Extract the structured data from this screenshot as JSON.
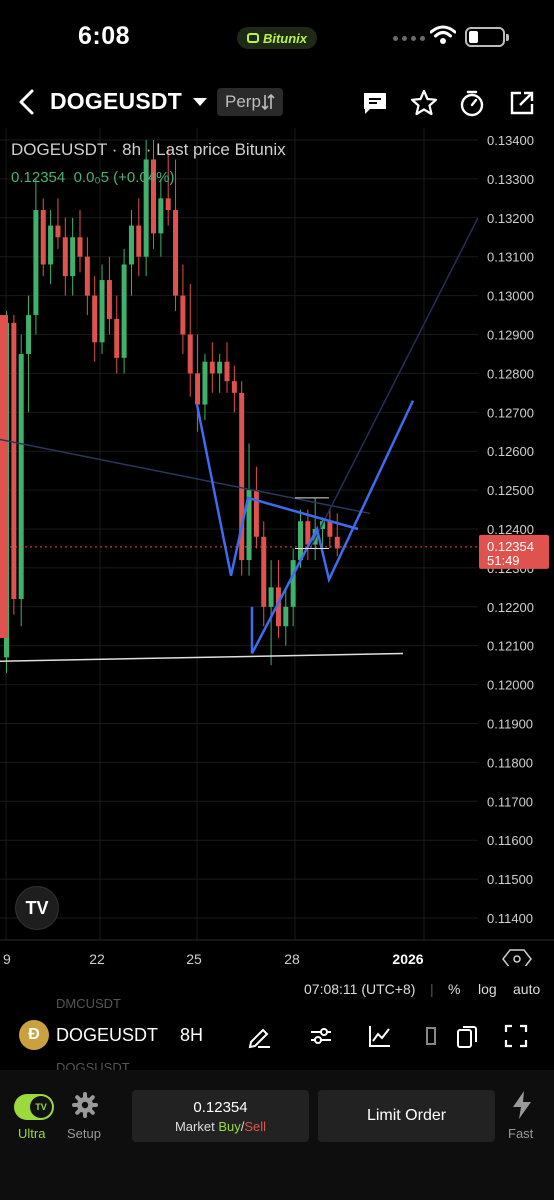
{
  "status": {
    "time": "6:08",
    "brand": "Bitunix"
  },
  "header": {
    "pair": "DOGEUSDT",
    "type_badge": "Perp",
    "type_badge_icon": "swap-arrows-icon"
  },
  "chart": {
    "legend_title": "DOGEUSDT · 8h · Last price Bitunix",
    "legend_price": "0.12354",
    "legend_change": "0.0₀5 (+0.04%)",
    "price_scale": [
      "0.13400",
      "0.13300",
      "0.13200",
      "0.13100",
      "0.13000",
      "0.12900",
      "0.12800",
      "0.12700",
      "0.12600",
      "0.12500",
      "0.12400",
      "0.12300",
      "0.12200",
      "0.12100",
      "0.12000",
      "0.11900",
      "0.11800",
      "0.11700",
      "0.11600",
      "0.11500",
      "0.11400"
    ],
    "time_scale": [
      "9",
      "22",
      "25",
      "28",
      "2026"
    ],
    "last_price_badge": "0.12354",
    "countdown": "51:49",
    "colors": {
      "up": "#3fb16b",
      "down": "#e0524d",
      "drawing": "#3d6cf0",
      "grid": "#1a1a1a"
    }
  },
  "chart_data": {
    "type": "candlestick",
    "title": "DOGEUSDT · 8h · Last price Bitunix",
    "xlabel": "",
    "ylabel": "",
    "ylim": [
      0.114,
      0.134
    ],
    "x_ticks": [
      "9",
      "22",
      "25",
      "28",
      "2026"
    ],
    "last_price": 0.12354,
    "note_series": "OHLC approximated per visible candle",
    "ohlc": [
      [
        0.1207,
        0.1296,
        0.1203,
        0.1293
      ],
      [
        0.1293,
        0.1295,
        0.1218,
        0.1222
      ],
      [
        0.1222,
        0.129,
        0.1215,
        0.1285
      ],
      [
        0.1285,
        0.13,
        0.127,
        0.1295
      ],
      [
        0.1295,
        0.133,
        0.129,
        0.1322
      ],
      [
        0.1322,
        0.1325,
        0.1305,
        0.1308
      ],
      [
        0.1308,
        0.1322,
        0.1303,
        0.1318
      ],
      [
        0.1318,
        0.1325,
        0.1312,
        0.1315
      ],
      [
        0.1315,
        0.132,
        0.13,
        0.1305
      ],
      [
        0.1305,
        0.132,
        0.13,
        0.1315
      ],
      [
        0.1315,
        0.1322,
        0.1306,
        0.131
      ],
      [
        0.131,
        0.1315,
        0.1295,
        0.13
      ],
      [
        0.13,
        0.1305,
        0.1283,
        0.1288
      ],
      [
        0.1288,
        0.1308,
        0.1285,
        0.1304
      ],
      [
        0.1304,
        0.131,
        0.129,
        0.1294
      ],
      [
        0.1294,
        0.13,
        0.128,
        0.1284
      ],
      [
        0.1284,
        0.1312,
        0.128,
        0.1308
      ],
      [
        0.1308,
        0.1322,
        0.13,
        0.1318
      ],
      [
        0.1318,
        0.1325,
        0.1305,
        0.131
      ],
      [
        0.131,
        0.134,
        0.1305,
        0.1335
      ],
      [
        0.1335,
        0.134,
        0.1312,
        0.1316
      ],
      [
        0.1316,
        0.133,
        0.131,
        0.1325
      ],
      [
        0.1325,
        0.1338,
        0.1318,
        0.1322
      ],
      [
        0.1322,
        0.1335,
        0.1296,
        0.13
      ],
      [
        0.13,
        0.1308,
        0.1285,
        0.129
      ],
      [
        0.129,
        0.1303,
        0.1274,
        0.128
      ],
      [
        0.128,
        0.129,
        0.1265,
        0.1272
      ],
      [
        0.1272,
        0.1285,
        0.1268,
        0.1283
      ],
      [
        0.1283,
        0.1288,
        0.1275,
        0.128
      ],
      [
        0.128,
        0.1285,
        0.1275,
        0.1283
      ],
      [
        0.1283,
        0.1288,
        0.1275,
        0.1278
      ],
      [
        0.1278,
        0.1282,
        0.127,
        0.1275
      ],
      [
        0.1275,
        0.1278,
        0.1228,
        0.1232
      ],
      [
        0.1232,
        0.1262,
        0.1228,
        0.125
      ],
      [
        0.125,
        0.1256,
        0.1235,
        0.1238
      ],
      [
        0.1238,
        0.1242,
        0.1215,
        0.122
      ],
      [
        0.122,
        0.1232,
        0.1205,
        0.1225
      ],
      [
        0.1225,
        0.1232,
        0.1212,
        0.1215
      ],
      [
        0.1215,
        0.1225,
        0.121,
        0.122
      ],
      [
        0.122,
        0.1235,
        0.1215,
        0.1232
      ],
      [
        0.1232,
        0.1245,
        0.123,
        0.1242
      ],
      [
        0.1242,
        0.1245,
        0.1232,
        0.1236
      ],
      [
        0.1236,
        0.1248,
        0.1232,
        0.124
      ],
      [
        0.124,
        0.1243,
        0.1234,
        0.1242
      ],
      [
        0.1242,
        0.1245,
        0.1235,
        0.1238
      ],
      [
        0.1238,
        0.1244,
        0.1233,
        0.1235
      ]
    ]
  },
  "time_bar": {
    "clock": "07:08:11 (UTC+8)",
    "percent": "%",
    "log": "log",
    "auto": "auto"
  },
  "toolbar": {
    "ghost_above": "DMCUSDT",
    "ghost_below": "DOGSUSDT",
    "pair": "DOGEUSDT",
    "interval": "8H"
  },
  "footer": {
    "ultra_label": "Ultra",
    "setup_label": "Setup",
    "market_price": "0.12354",
    "market_prefix": "Market ",
    "market_buy": "Buy",
    "market_slash": "/",
    "market_sell": "Sell",
    "limit_label": "Limit Order",
    "fast_label": "Fast"
  }
}
